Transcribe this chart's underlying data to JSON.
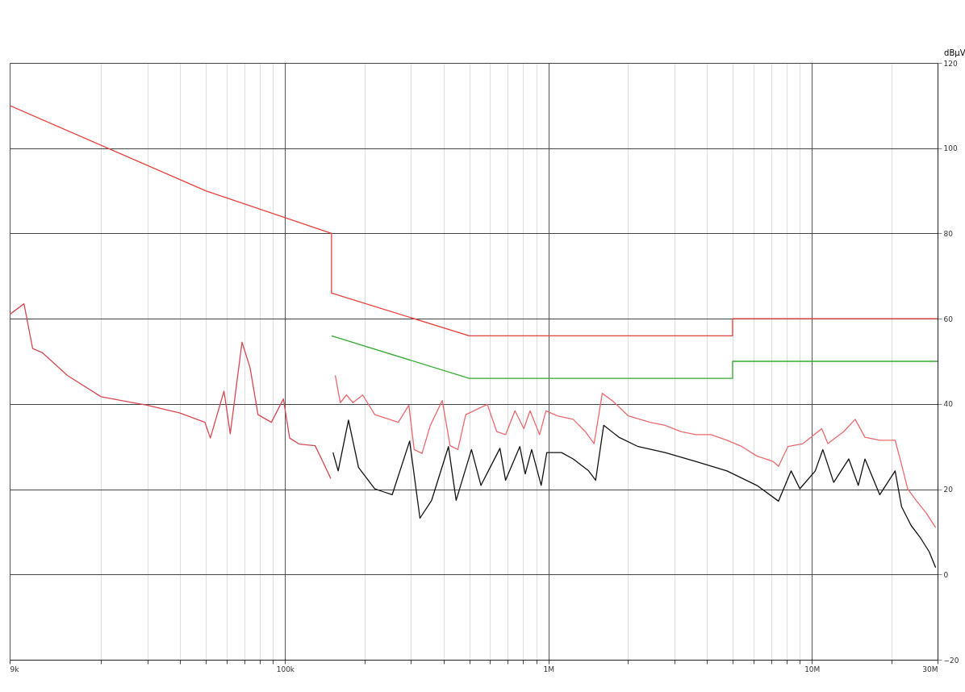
{
  "chart_data": {
    "type": "line",
    "ylabel": "dBµV",
    "log": "x",
    "grid": true,
    "xlim": [
      9000,
      30000000
    ],
    "ylim": [
      -20,
      120
    ],
    "yticks": [
      -20,
      0,
      20,
      40,
      60,
      80,
      100,
      120
    ],
    "xticks": [
      {
        "value": 9000,
        "label": "9k"
      },
      {
        "value": 20000,
        "label": null
      },
      {
        "value": 30000,
        "label": null
      },
      {
        "value": 40000,
        "label": null
      },
      {
        "value": 50000,
        "label": null
      },
      {
        "value": 60000,
        "label": null
      },
      {
        "value": 70000,
        "label": null
      },
      {
        "value": 80000,
        "label": null
      },
      {
        "value": 90000,
        "label": null
      },
      {
        "value": 100000,
        "label": "100k"
      },
      {
        "value": 200000,
        "label": null
      },
      {
        "value": 300000,
        "label": null
      },
      {
        "value": 400000,
        "label": null
      },
      {
        "value": 500000,
        "label": null
      },
      {
        "value": 600000,
        "label": null
      },
      {
        "value": 700000,
        "label": null
      },
      {
        "value": 800000,
        "label": null
      },
      {
        "value": 900000,
        "label": null
      },
      {
        "value": 1000000,
        "label": "1M"
      },
      {
        "value": 2000000,
        "label": null
      },
      {
        "value": 3000000,
        "label": null
      },
      {
        "value": 4000000,
        "label": null
      },
      {
        "value": 5000000,
        "label": null
      },
      {
        "value": 6000000,
        "label": null
      },
      {
        "value": 7000000,
        "label": null
      },
      {
        "value": 8000000,
        "label": null
      },
      {
        "value": 9000000,
        "label": null
      },
      {
        "value": 10000000,
        "label": "10M"
      },
      {
        "value": 20000000,
        "label": null
      },
      {
        "value": 30000000,
        "label": "30M"
      }
    ],
    "series": [
      {
        "color": "#e8403a",
        "x": [
          9000,
          50000,
          150000,
          150000,
          500000,
          5000000,
          5000000,
          30000000
        ],
        "values": [
          110,
          90,
          80,
          66,
          56,
          56,
          60,
          60
        ]
      },
      {
        "color": "#33aa33",
        "x": [
          150000,
          500000,
          5000000,
          5000000,
          30000000
        ],
        "values": [
          56,
          46,
          46,
          50,
          50
        ]
      },
      {
        "color": "#d84850",
        "x": [
          9000,
          10200,
          11000,
          12000,
          14900,
          20000,
          24800,
          29900,
          39700,
          49600,
          52000,
          58600,
          61900,
          68600,
          73600,
          78900,
          88700,
          98500,
          104000,
          113000,
          130000,
          139000,
          149000
        ],
        "values": [
          61,
          63.5,
          53,
          52,
          46.7,
          41.7,
          40.6,
          39.7,
          37.9,
          35.7,
          32,
          43,
          33,
          54.5,
          48.5,
          37.5,
          35.7,
          41.2,
          32,
          30.6,
          30.2,
          26.5,
          22.5
        ]
      },
      {
        "color": "#ec6a6e",
        "x": [
          155000,
          162000,
          171000,
          181000,
          197000,
          219000,
          243000,
          269000,
          295000,
          309000,
          331000,
          355000,
          395000,
          423000,
          453000,
          485000,
          586000,
          636000,
          687000,
          746000,
          806000,
          851000,
          925000,
          978000,
          1080000,
          1240000,
          1380000,
          1490000,
          1600000,
          1760000,
          2010000,
          2430000,
          2770000,
          3180000,
          3620000,
          4140000,
          4760000,
          5420000,
          6180000,
          7120000,
          7470000,
          8110000,
          9250000,
          10900000,
          11500000,
          13200000,
          14600000,
          15900000,
          18100000,
          20700000,
          21900000,
          23100000,
          25000000,
          27100000,
          29500000
        ],
        "values": [
          46.7,
          40.3,
          42.1,
          40.3,
          42.1,
          37.5,
          36.6,
          35.7,
          39.7,
          29.3,
          28.4,
          34.8,
          40.8,
          30.2,
          29.3,
          37.5,
          39.9,
          33.5,
          32.8,
          38.4,
          34.2,
          38.4,
          32.8,
          38.4,
          37.2,
          36.4,
          33.5,
          30.7,
          42.5,
          40.6,
          37.2,
          35.7,
          35.0,
          33.5,
          32.8,
          32.8,
          31.5,
          30.0,
          27.8,
          26.5,
          25.4,
          30.0,
          30.7,
          34.2,
          30.7,
          33.5,
          36.4,
          32.2,
          31.5,
          31.5,
          25.8,
          20.1,
          17.2,
          14.5,
          11.0
        ]
      },
      {
        "color": "#111111",
        "x": [
          152000,
          159000,
          174000,
          190000,
          219000,
          236000,
          255000,
          297000,
          325000,
          360000,
          417000,
          446000,
          510000,
          554000,
          654000,
          687000,
          778000,
          816000,
          863000,
          938000,
          985000,
          1120000,
          1240000,
          1420000,
          1510000,
          1620000,
          1850000,
          2190000,
          2770000,
          3620000,
          4760000,
          6180000,
          7470000,
          8340000,
          9000000,
          10300000,
          11000000,
          12100000,
          13800000,
          15000000,
          15900000,
          18100000,
          20700000,
          21900000,
          23800000,
          25700000,
          27900000,
          29500000
        ],
        "values": [
          28.6,
          24.3,
          36.2,
          25.1,
          20.1,
          19.4,
          18.7,
          31.3,
          13.2,
          17.4,
          30.0,
          17.4,
          29.3,
          20.9,
          29.6,
          22.1,
          30.0,
          23.6,
          29.3,
          20.9,
          28.6,
          28.6,
          27.1,
          24.3,
          22.1,
          35.0,
          32.2,
          30.0,
          28.6,
          26.5,
          24.3,
          20.9,
          17.2,
          24.3,
          20.1,
          24.3,
          29.3,
          21.6,
          27.1,
          20.9,
          27.1,
          18.7,
          24.3,
          15.9,
          11.5,
          8.8,
          5.3,
          1.6
        ]
      }
    ]
  }
}
